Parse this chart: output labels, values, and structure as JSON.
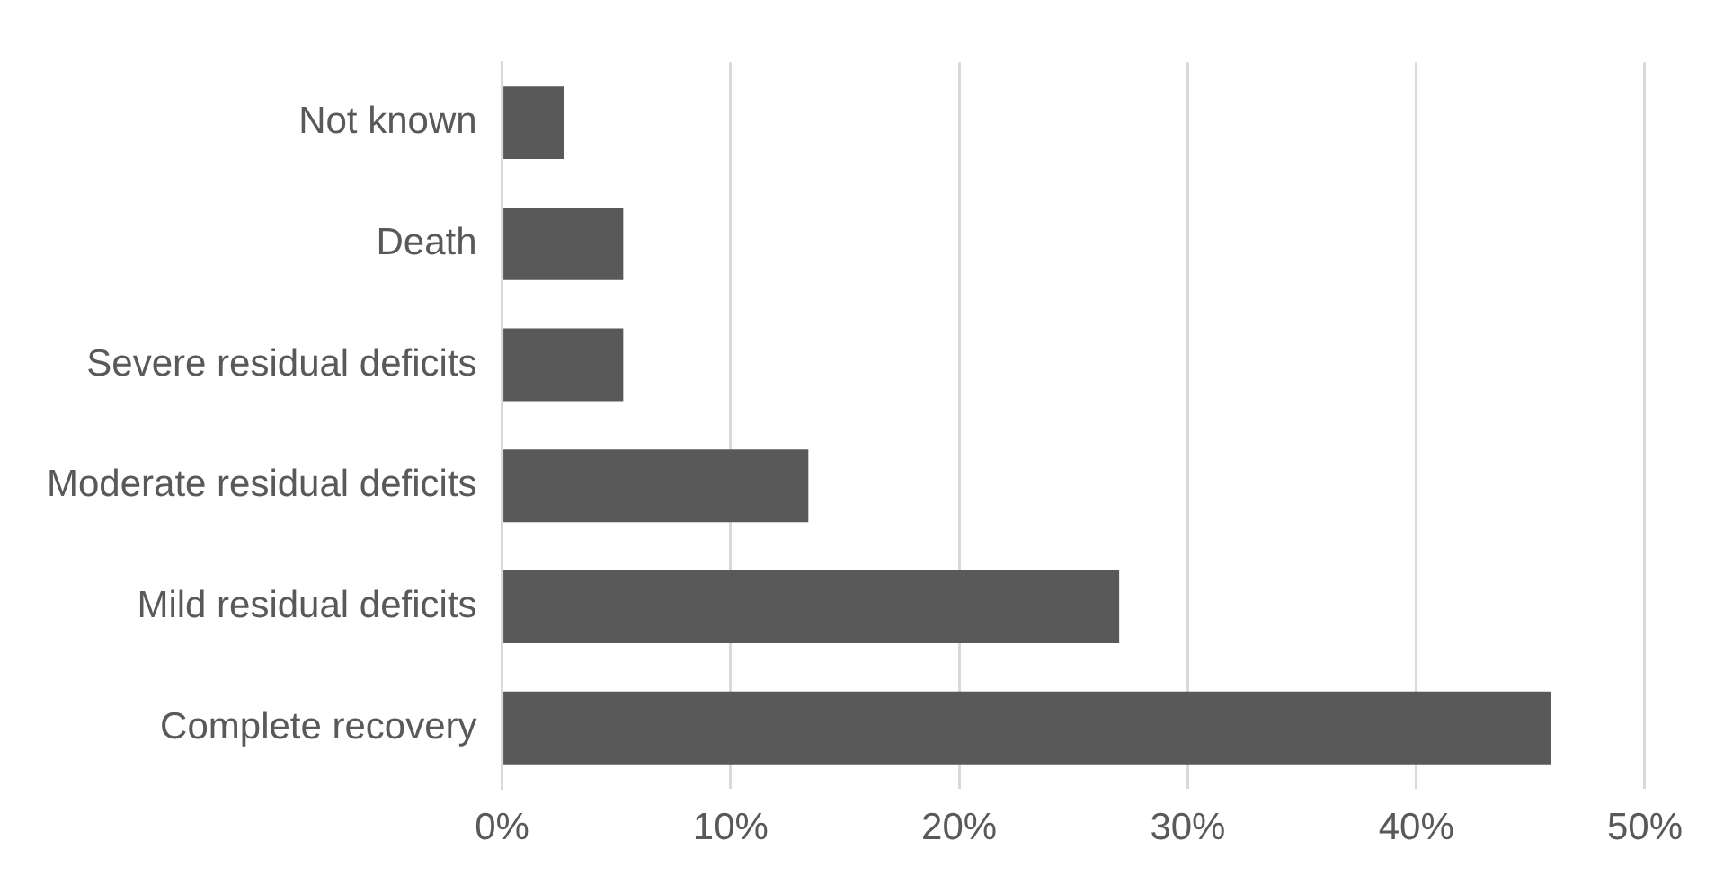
{
  "chart_data": {
    "type": "bar",
    "orientation": "horizontal",
    "categories": [
      "Not known",
      "Death",
      "Severe residual deficits",
      "Moderate residual deficits",
      "Mild residual deficits",
      "Complete recovery"
    ],
    "values": [
      2.7,
      5.3,
      5.3,
      13.4,
      27.0,
      45.9
    ],
    "color": "#595959",
    "xlim": [
      0,
      50
    ],
    "xticks": [
      {
        "value": 0,
        "label": "0%"
      },
      {
        "value": 10,
        "label": "10%"
      },
      {
        "value": 20,
        "label": "20%"
      },
      {
        "value": 30,
        "label": "30%"
      },
      {
        "value": 40,
        "label": "40%"
      },
      {
        "value": 50,
        "label": "50%"
      }
    ],
    "grid": "x",
    "legend": false
  }
}
